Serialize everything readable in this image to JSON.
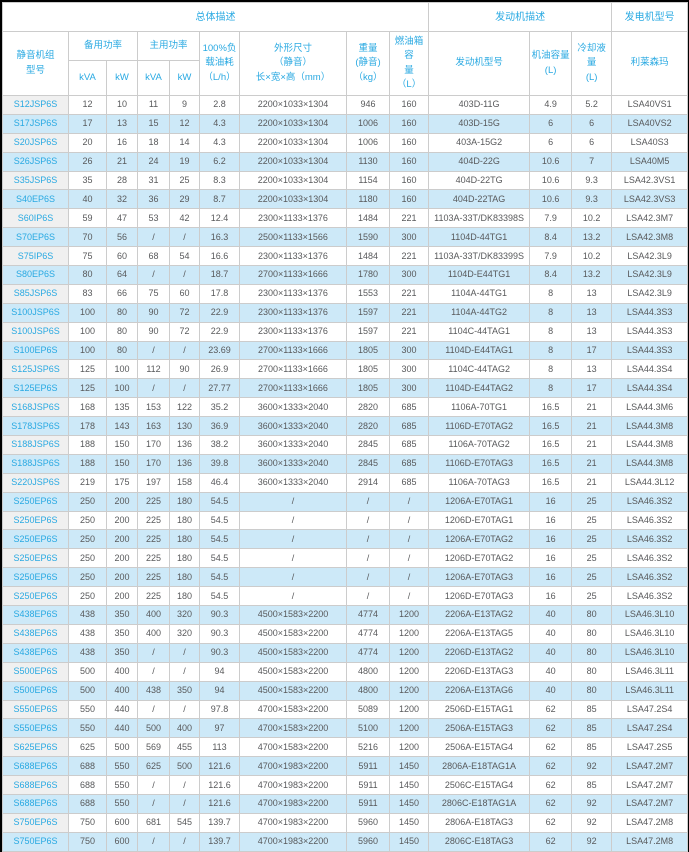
{
  "colors": {
    "accent_blue": "#29A9E2",
    "stripe_blue": "#CDE9F8",
    "data_text": "#58595B",
    "border": "#CCCCCC",
    "model_cell_bg": "#F0F0F0"
  },
  "table": {
    "bands": {
      "overall": "总体描述",
      "engine": "发动机描述",
      "generator": "发电机型号"
    },
    "headers": {
      "model": "静音机组\n型号",
      "standby_power": "备用功率",
      "prime_power": "主用功率",
      "standby_kva": "kVA",
      "standby_kw": "kW",
      "prime_kva": "kVA",
      "prime_kw": "kW",
      "fuel_consumption": "100%负\n载油耗\n（L/h）",
      "dimensions": "外形尺寸\n（静音）\n长×宽×高（mm）",
      "weight": "重量\n(静音)\n（kg）",
      "fuel_tank": "燃油箱容\n量\n（L）",
      "engine_model": "发动机型号",
      "oil_capacity": "机油容量\n(L)",
      "coolant_capacity": "冷却液量\n(L)",
      "alternator": "利莱森玛"
    },
    "rows": [
      [
        "S12JSP6S",
        "12",
        "10",
        "11",
        "9",
        "2.8",
        "2200×1033×1304",
        "946",
        "160",
        "403D-11G",
        "4.9",
        "5.2",
        "LSA40VS1"
      ],
      [
        "S17JSP6S",
        "17",
        "13",
        "15",
        "12",
        "4.3",
        "2200×1033×1304",
        "1006",
        "160",
        "403D-15G",
        "6",
        "6",
        "LSA40VS2"
      ],
      [
        "S20JSP6S",
        "20",
        "16",
        "18",
        "14",
        "4.3",
        "2200×1033×1304",
        "1006",
        "160",
        "403A-15G2",
        "6",
        "6",
        "LSA40S3"
      ],
      [
        "S26JSP6S",
        "26",
        "21",
        "24",
        "19",
        "6.2",
        "2200×1033×1304",
        "1130",
        "160",
        "404D-22G",
        "10.6",
        "7",
        "LSA40M5"
      ],
      [
        "S35JSP6S",
        "35",
        "28",
        "31",
        "25",
        "8.3",
        "2200×1033×1304",
        "1154",
        "160",
        "404D-22TG",
        "10.6",
        "9.3",
        "LSA42.3VS1"
      ],
      [
        "S40EP6S",
        "40",
        "32",
        "36",
        "29",
        "8.7",
        "2200×1033×1304",
        "1180",
        "160",
        "404D-22TAG",
        "10.6",
        "9.3",
        "LSA42.3VS3"
      ],
      [
        "S60IP6S",
        "59",
        "47",
        "53",
        "42",
        "12.4",
        "2300×1133×1376",
        "1484",
        "221",
        "1103A-33T/DK83398S",
        "7.9",
        "10.2",
        "LSA42.3M7"
      ],
      [
        "S70EP6S",
        "70",
        "56",
        "/",
        "/",
        "16.3",
        "2500×1133×1566",
        "1590",
        "300",
        "1104D-44TG1",
        "8.4",
        "13.2",
        "LSA42.3M8"
      ],
      [
        "S75IP6S",
        "75",
        "60",
        "68",
        "54",
        "16.6",
        "2300×1133×1376",
        "1484",
        "221",
        "1103A-33T/DK83399S",
        "7.9",
        "10.2",
        "LSA42.3L9"
      ],
      [
        "S80EP6S",
        "80",
        "64",
        "/",
        "/",
        "18.7",
        "2700×1133×1666",
        "1780",
        "300",
        "1104D-E44TG1",
        "8.4",
        "13.2",
        "LSA42.3L9"
      ],
      [
        "S85JSP6S",
        "83",
        "66",
        "75",
        "60",
        "17.8",
        "2300×1133×1376",
        "1553",
        "221",
        "1104A-44TG1",
        "8",
        "13",
        "LSA42.3L9"
      ],
      [
        "S100JSP6S",
        "100",
        "80",
        "90",
        "72",
        "22.9",
        "2300×1133×1376",
        "1597",
        "221",
        "1104A-44TG2",
        "8",
        "13",
        "LSA44.3S3"
      ],
      [
        "S100JSP6S",
        "100",
        "80",
        "90",
        "72",
        "22.9",
        "2300×1133×1376",
        "1597",
        "221",
        "1104C-44TAG1",
        "8",
        "13",
        "LSA44.3S3"
      ],
      [
        "S100EP6S",
        "100",
        "80",
        "/",
        "/",
        "23.69",
        "2700×1133×1666",
        "1805",
        "300",
        "1104D-E44TAG1",
        "8",
        "17",
        "LSA44.3S3"
      ],
      [
        "S125JSP6S",
        "125",
        "100",
        "112",
        "90",
        "26.9",
        "2700×1133×1666",
        "1805",
        "300",
        "1104C-44TAG2",
        "8",
        "13",
        "LSA44.3S4"
      ],
      [
        "S125EP6S",
        "125",
        "100",
        "/",
        "/",
        "27.77",
        "2700×1133×1666",
        "1805",
        "300",
        "1104D-E44TAG2",
        "8",
        "17",
        "LSA44.3S4"
      ],
      [
        "S168JSP6S",
        "168",
        "135",
        "153",
        "122",
        "35.2",
        "3600×1333×2040",
        "2820",
        "685",
        "1106A-70TG1",
        "16.5",
        "21",
        "LSA44.3M6"
      ],
      [
        "S178JSP6S",
        "178",
        "143",
        "163",
        "130",
        "36.9",
        "3600×1333×2040",
        "2820",
        "685",
        "1106D-E70TAG2",
        "16.5",
        "21",
        "LSA44.3M8"
      ],
      [
        "S188JSP6S",
        "188",
        "150",
        "170",
        "136",
        "38.2",
        "3600×1333×2040",
        "2845",
        "685",
        "1106A-70TAG2",
        "16.5",
        "21",
        "LSA44.3M8"
      ],
      [
        "S188JSP6S",
        "188",
        "150",
        "170",
        "136",
        "39.8",
        "3600×1333×2040",
        "2845",
        "685",
        "1106D-E70TAG3",
        "16.5",
        "21",
        "LSA44.3M8"
      ],
      [
        "S220JSP6S",
        "219",
        "175",
        "197",
        "158",
        "46.4",
        "3600×1333×2040",
        "2914",
        "685",
        "1106A-70TAG3",
        "16.5",
        "21",
        "LSA44.3L12"
      ],
      [
        "S250EP6S",
        "250",
        "200",
        "225",
        "180",
        "54.5",
        "/",
        "/",
        "/",
        "1206A-E70TAG1",
        "16",
        "25",
        "LSA46.3S2"
      ],
      [
        "S250EP6S",
        "250",
        "200",
        "225",
        "180",
        "54.5",
        "/",
        "/",
        "/",
        "1206D-E70TAG1",
        "16",
        "25",
        "LSA46.3S2"
      ],
      [
        "S250EP6S",
        "250",
        "200",
        "225",
        "180",
        "54.5",
        "/",
        "/",
        "/",
        "1206A-E70TAG2",
        "16",
        "25",
        "LSA46.3S2"
      ],
      [
        "S250EP6S",
        "250",
        "200",
        "225",
        "180",
        "54.5",
        "/",
        "/",
        "/",
        "1206D-E70TAG2",
        "16",
        "25",
        "LSA46.3S2"
      ],
      [
        "S250EP6S",
        "250",
        "200",
        "225",
        "180",
        "54.5",
        "/",
        "/",
        "/",
        "1206A-E70TAG3",
        "16",
        "25",
        "LSA46.3S2"
      ],
      [
        "S250EP6S",
        "250",
        "200",
        "225",
        "180",
        "54.5",
        "/",
        "/",
        "/",
        "1206D-E70TAG3",
        "16",
        "25",
        "LSA46.3S2"
      ],
      [
        "S438EP6S",
        "438",
        "350",
        "400",
        "320",
        "90.3",
        "4500×1583×2200",
        "4774",
        "1200",
        "2206A-E13TAG2",
        "40",
        "80",
        "LSA46.3L10"
      ],
      [
        "S438EP6S",
        "438",
        "350",
        "400",
        "320",
        "90.3",
        "4500×1583×2200",
        "4774",
        "1200",
        "2206A-E13TAG5",
        "40",
        "80",
        "LSA46.3L10"
      ],
      [
        "S438EP6S",
        "438",
        "350",
        "/",
        "/",
        "90.3",
        "4500×1583×2200",
        "4774",
        "1200",
        "2206D-E13TAG2",
        "40",
        "80",
        "LSA46.3L10"
      ],
      [
        "S500EP6S",
        "500",
        "400",
        "/",
        "/",
        "94",
        "4500×1583×2200",
        "4800",
        "1200",
        "2206D-E13TAG3",
        "40",
        "80",
        "LSA46.3L11"
      ],
      [
        "S500EP6S",
        "500",
        "400",
        "438",
        "350",
        "94",
        "4500×1583×2200",
        "4800",
        "1200",
        "2206A-E13TAG6",
        "40",
        "80",
        "LSA46.3L11"
      ],
      [
        "S550EP6S",
        "550",
        "440",
        "/",
        "/",
        "97.8",
        "4700×1583×2200",
        "5089",
        "1200",
        "2506D-E15TAG1",
        "62",
        "85",
        "LSA47.2S4"
      ],
      [
        "S550EP6S",
        "550",
        "440",
        "500",
        "400",
        "97",
        "4700×1583×2200",
        "5100",
        "1200",
        "2506A-E15TAG3",
        "62",
        "85",
        "LSA47.2S4"
      ],
      [
        "S625EP6S",
        "625",
        "500",
        "569",
        "455",
        "113",
        "4700×1583×2200",
        "5216",
        "1200",
        "2506A-E15TAG4",
        "62",
        "85",
        "LSA47.2S5"
      ],
      [
        "S688EP6S",
        "688",
        "550",
        "625",
        "500",
        "121.6",
        "4700×1983×2200",
        "5911",
        "1450",
        "2806A-E18TAG1A",
        "62",
        "92",
        "LSA47.2M7"
      ],
      [
        "S688EP6S",
        "688",
        "550",
        "/",
        "/",
        "121.6",
        "4700×1983×2200",
        "5911",
        "1450",
        "2506C-E15TAG4",
        "62",
        "85",
        "LSA47.2M7"
      ],
      [
        "S688EP6S",
        "688",
        "550",
        "/",
        "/",
        "121.6",
        "4700×1983×2200",
        "5911",
        "1450",
        "2806C-E18TAG1A",
        "62",
        "92",
        "LSA47.2M7"
      ],
      [
        "S750EP6S",
        "750",
        "600",
        "681",
        "545",
        "139.7",
        "4700×1983×2200",
        "5960",
        "1450",
        "2806A-E18TAG3",
        "62",
        "92",
        "LSA47.2M8"
      ],
      [
        "S750EP6S",
        "750",
        "600",
        "/",
        "/",
        "139.7",
        "4700×1983×2200",
        "5960",
        "1450",
        "2806C-E18TAG3",
        "62",
        "92",
        "LSA47.2M8"
      ]
    ]
  }
}
